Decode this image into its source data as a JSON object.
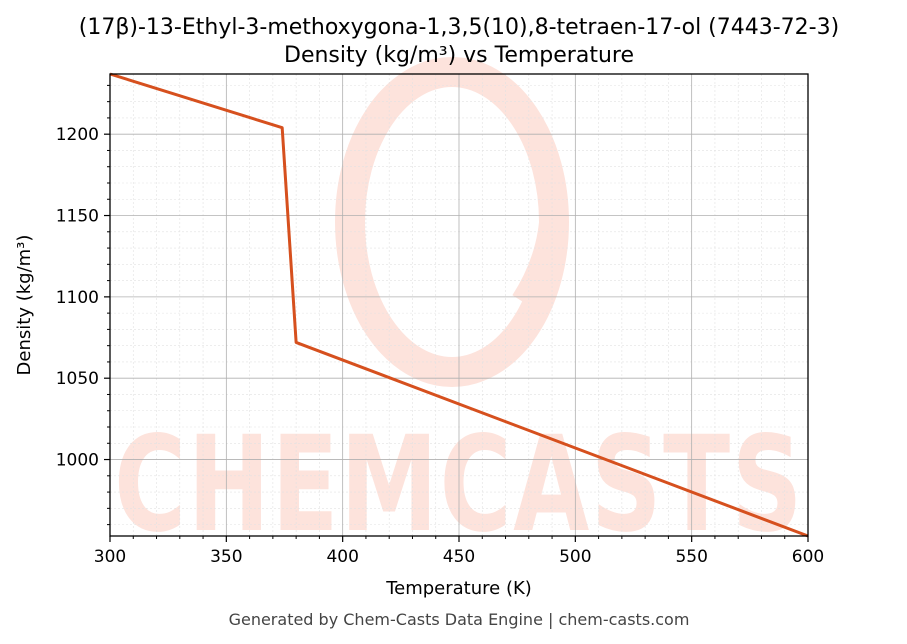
{
  "colors": {
    "line": "#d6501e",
    "watermark": "#fde3dc",
    "grid_major": "#b0b0b0",
    "grid_minor": "#e2e2e2",
    "footer": "#444444"
  },
  "watermark": {
    "text": "CHEMCASTS"
  },
  "footer": {
    "text": "Generated by Chem-Casts Data Engine | chem-casts.com"
  },
  "chart_data": {
    "type": "line",
    "title": "(17β)-13-Ethyl-3-methoxygona-1,3,5(10),8-tetraen-17-ol (7443-72-3)",
    "subtitle": "Density (kg/m³) vs Temperature",
    "xlabel": "Temperature (K)",
    "ylabel": "Density (kg/m³)",
    "xlim": [
      300,
      600
    ],
    "ylim": [
      953,
      1237
    ],
    "xticks": [
      300,
      350,
      400,
      450,
      500,
      550,
      600
    ],
    "yticks": [
      1000,
      1050,
      1100,
      1150,
      1200
    ],
    "grid": true,
    "legend": "none",
    "series": [
      {
        "x": [
          300,
          374,
          380,
          600
        ],
        "y": [
          1237,
          1204,
          1072,
          953
        ]
      }
    ]
  }
}
